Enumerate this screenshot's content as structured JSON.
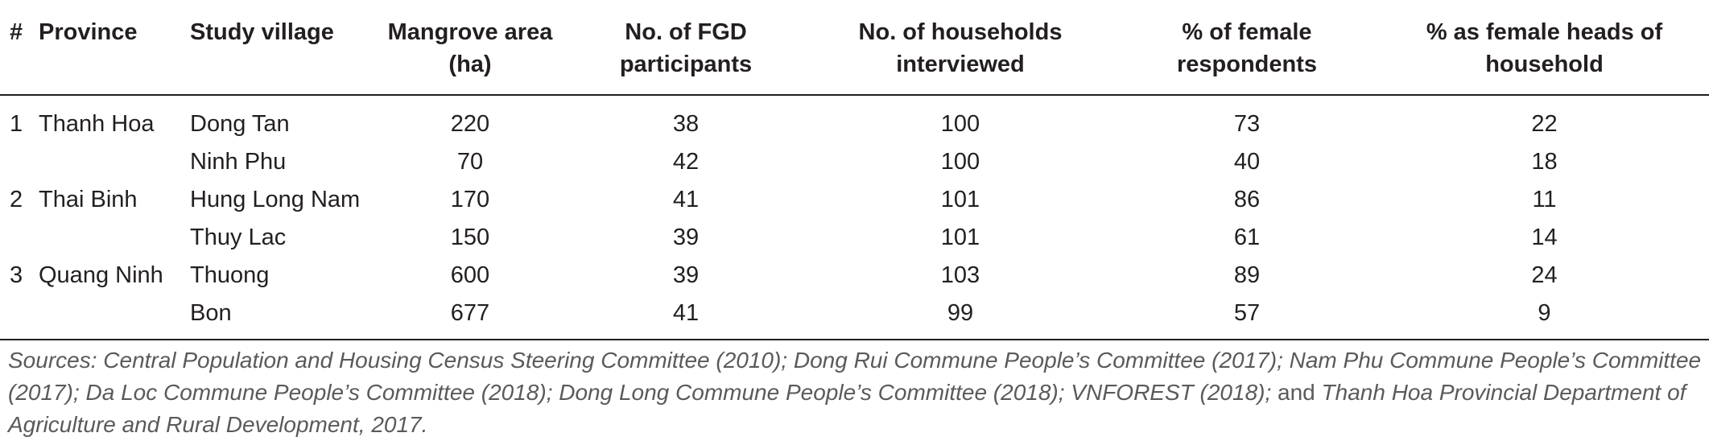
{
  "table": {
    "headers": [
      {
        "lines": [
          "#"
        ]
      },
      {
        "lines": [
          "Province"
        ]
      },
      {
        "lines": [
          "Study village"
        ]
      },
      {
        "lines": [
          "Mangrove area",
          "(ha)"
        ]
      },
      {
        "lines": [
          "No. of FGD",
          "participants"
        ]
      },
      {
        "lines": [
          "No. of households",
          "interviewed"
        ]
      },
      {
        "lines": [
          "% of female",
          "respondents"
        ]
      },
      {
        "lines": [
          "% as female heads of",
          "household"
        ]
      }
    ],
    "rows": [
      [
        "1",
        "Thanh Hoa",
        "Dong Tan",
        "220",
        "38",
        "100",
        "73",
        "22"
      ],
      [
        "",
        "",
        "Ninh Phu",
        "70",
        "42",
        "100",
        "40",
        "18"
      ],
      [
        "2",
        "Thai Binh",
        "Hung Long Nam",
        "170",
        "41",
        "101",
        "86",
        "11"
      ],
      [
        "",
        "",
        "Thuy Lac",
        "150",
        "39",
        "101",
        "61",
        "14"
      ],
      [
        "3",
        "Quang Ninh",
        "Thuong",
        "600",
        "39",
        "103",
        "89",
        "24"
      ],
      [
        "",
        "",
        "Bon",
        "677",
        "41",
        "99",
        "57",
        "9"
      ]
    ]
  },
  "source_note": {
    "label": "Sources:",
    "text": " Central Population and Housing Census Steering Committee (2010); Dong Rui Commune People’s Committee (2017); Nam Phu Commune People’s Committee (2017); Da Loc Commune People’s Committee (2018); Dong Long Commune People’s Committee (2018); VNFOREST (2018);",
    "conjunction": " and ",
    "text_end": "Thanh Hoa Provincial Department of Agriculture and Rural Development, 2017."
  }
}
